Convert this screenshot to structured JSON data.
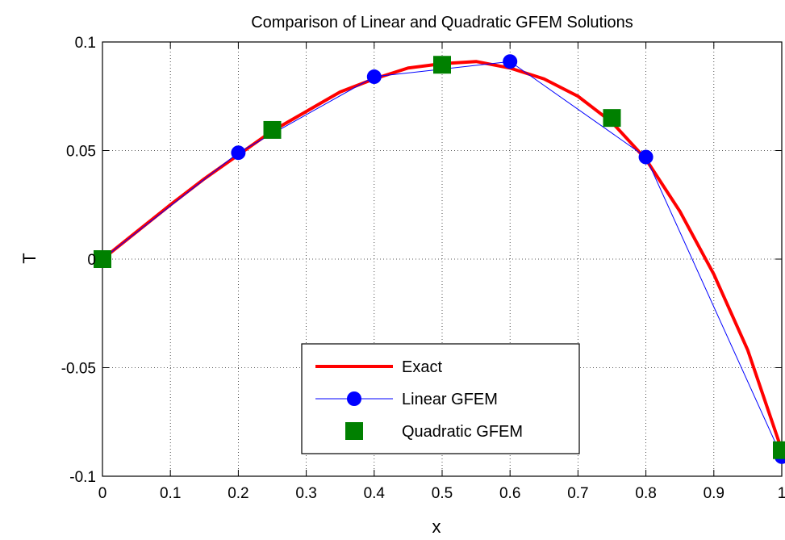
{
  "chart_data": {
    "type": "line",
    "title": "Comparison of Linear and Quadratic GFEM Solutions",
    "xlabel": "x",
    "ylabel": "T",
    "xlim": [
      0,
      1
    ],
    "ylim": [
      -0.1,
      0.1
    ],
    "xticks": [
      0,
      0.1,
      0.2,
      0.3,
      0.4,
      0.5,
      0.6,
      0.7,
      0.8,
      0.9,
      1
    ],
    "xtick_labels": [
      "0",
      "0.1",
      "0.2",
      "0.3",
      "0.4",
      "0.5",
      "0.6",
      "0.7",
      "0.8",
      "0.9",
      "1"
    ],
    "yticks": [
      0.1,
      0.05,
      0,
      -0.05,
      -0.1
    ],
    "ytick_labels": [
      "0.1",
      "0.05",
      "0",
      "-0.05",
      "-0.1"
    ],
    "grid": true,
    "legend_position": "bottom-center",
    "series": [
      {
        "name": "Exact",
        "style": "line",
        "color": "#ff0000",
        "x": [
          0,
          0.05,
          0.1,
          0.15,
          0.2,
          0.25,
          0.3,
          0.35,
          0.4,
          0.45,
          0.5,
          0.55,
          0.6,
          0.65,
          0.7,
          0.75,
          0.8,
          0.85,
          0.9,
          0.95,
          1.0
        ],
        "y": [
          0,
          0.0125,
          0.025,
          0.037,
          0.048,
          0.059,
          0.068,
          0.077,
          0.083,
          0.088,
          0.09,
          0.091,
          0.088,
          0.083,
          0.075,
          0.063,
          0.046,
          0.022,
          -0.007,
          -0.042,
          -0.088
        ]
      },
      {
        "name": "Linear GFEM",
        "style": "line-marker",
        "marker": "circle",
        "color": "#0000ff",
        "x": [
          0,
          0.2,
          0.4,
          0.6,
          0.8,
          1.0
        ],
        "y": [
          0,
          0.049,
          0.084,
          0.091,
          0.047,
          -0.091
        ]
      },
      {
        "name": "Quadratic GFEM",
        "style": "marker",
        "marker": "square",
        "color": "#008000",
        "x": [
          0,
          0.25,
          0.5,
          0.75,
          1.0
        ],
        "y": [
          0,
          0.0595,
          0.0895,
          0.065,
          -0.088
        ]
      }
    ]
  }
}
